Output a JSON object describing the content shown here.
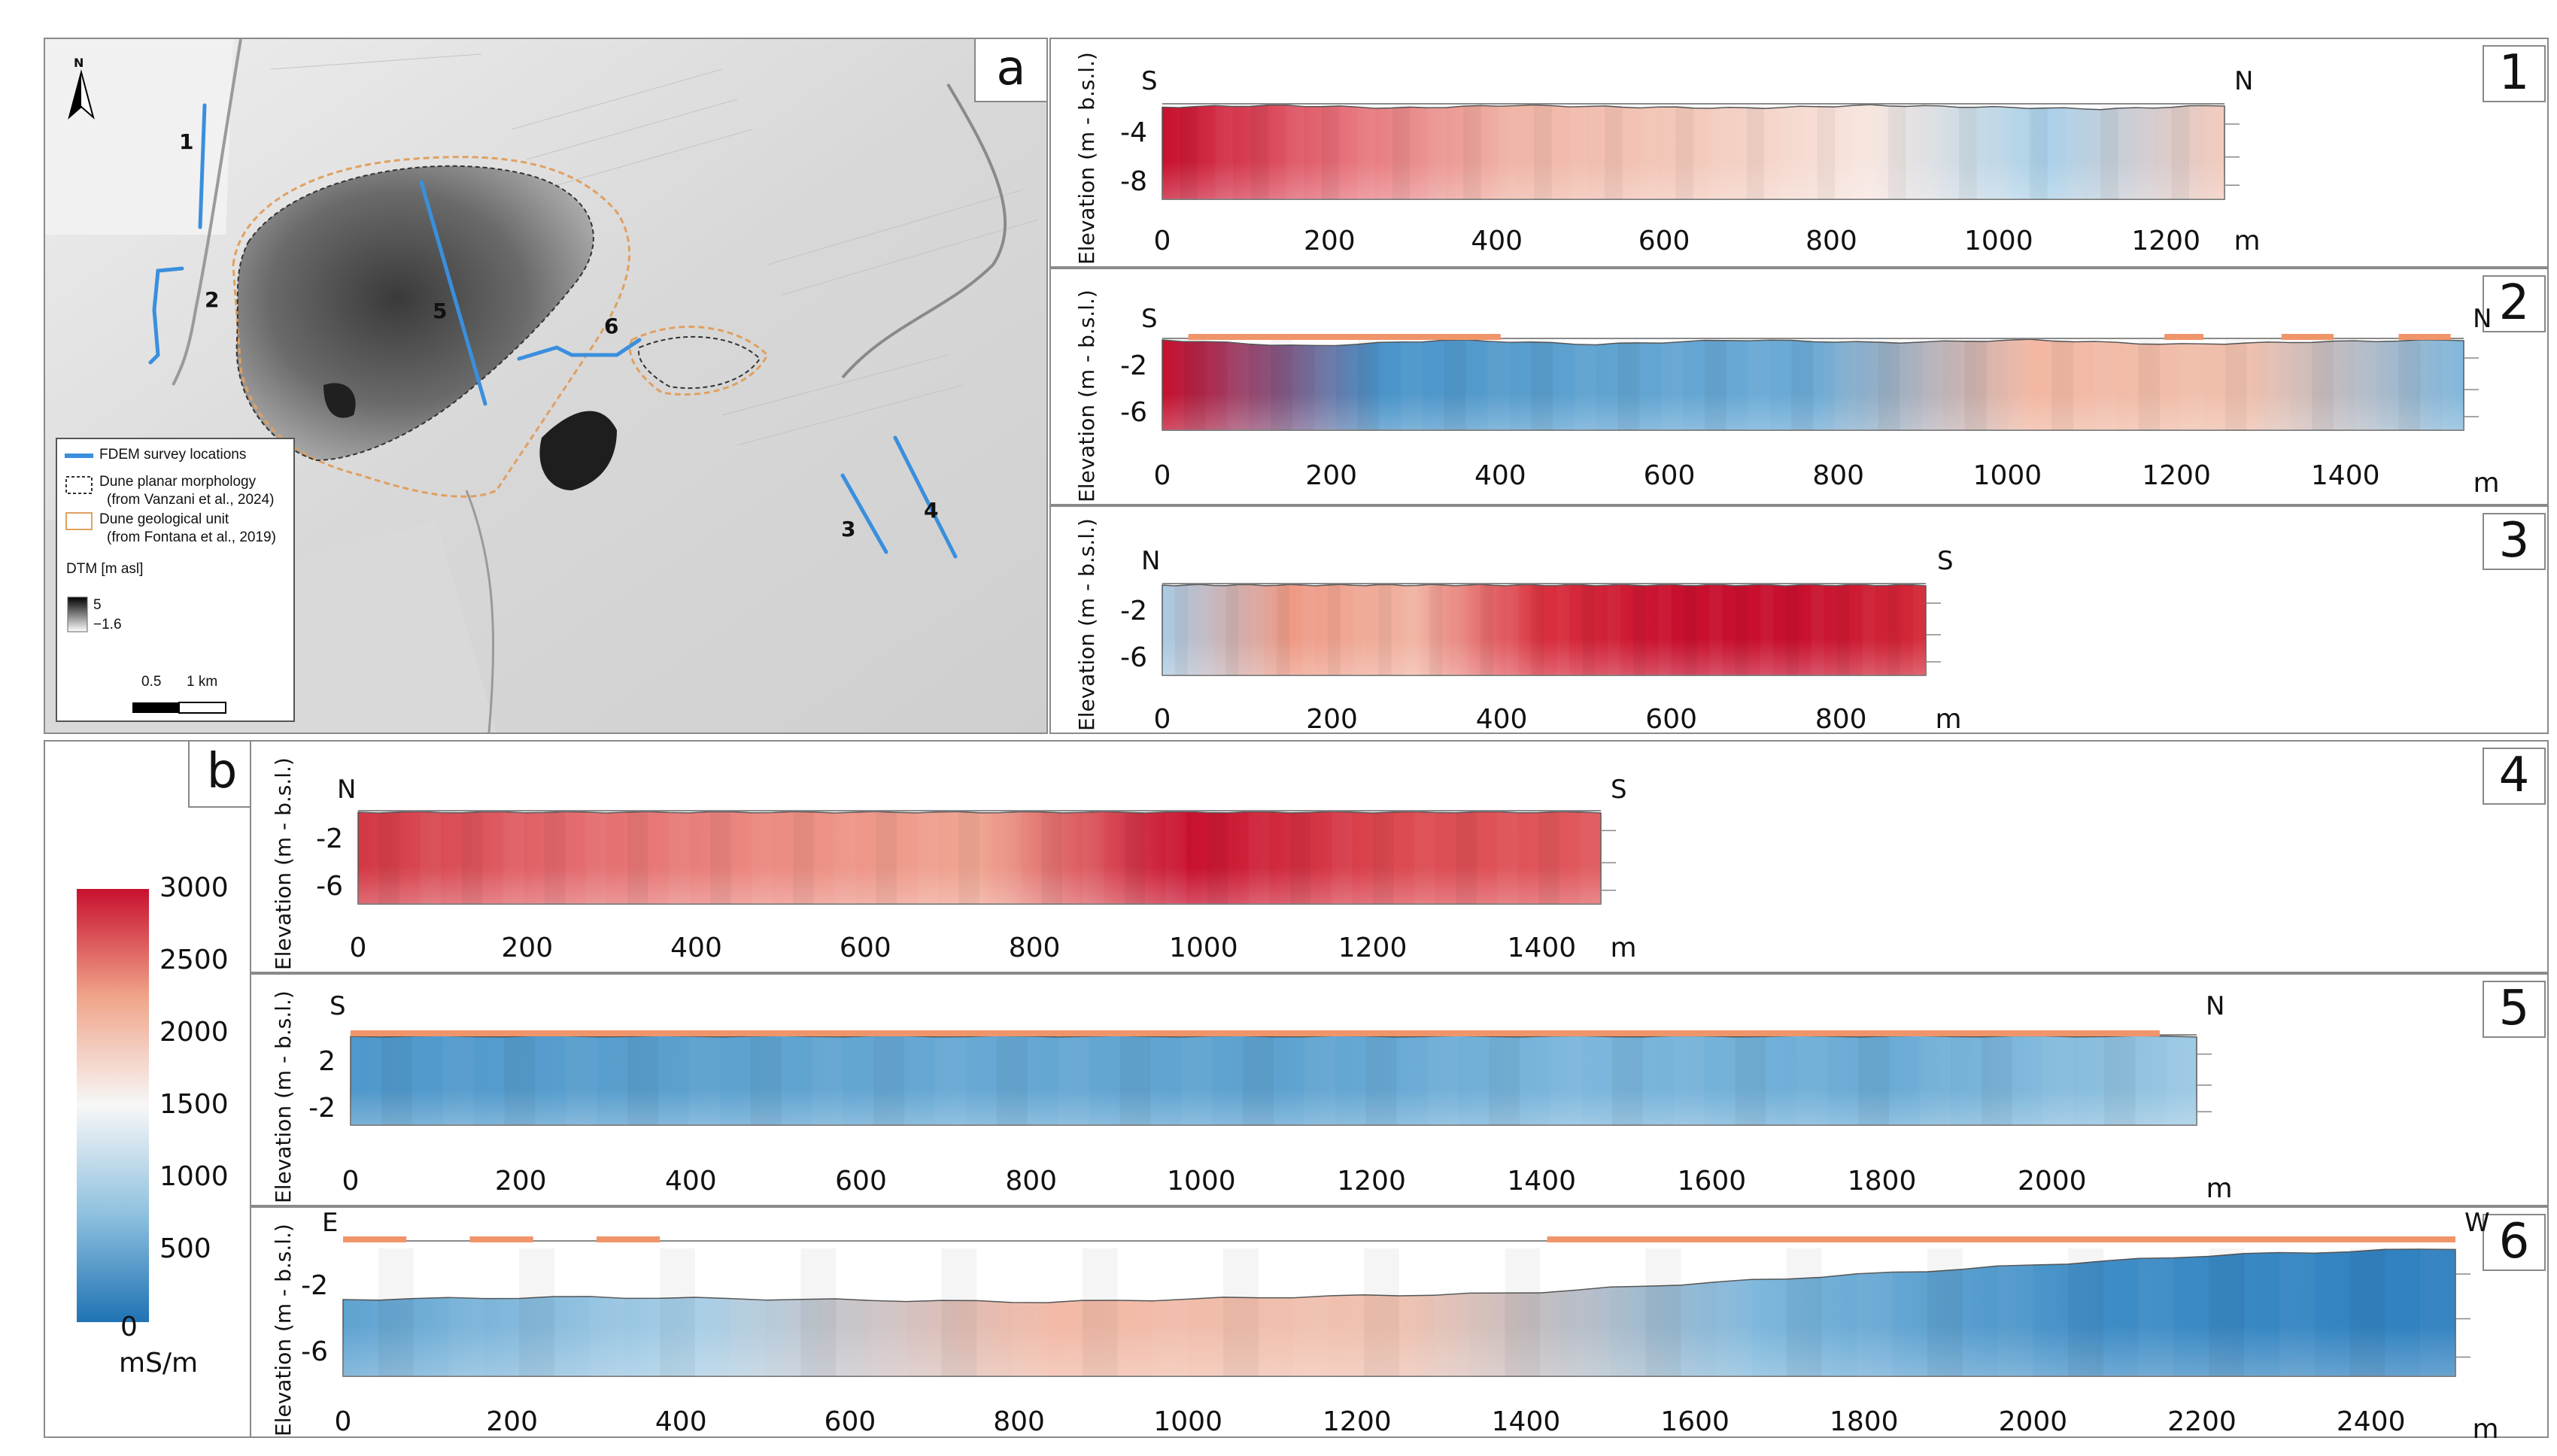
{
  "panel_a": {
    "label": "a",
    "north": "N",
    "lines": [
      {
        "id": "1",
        "label": "1"
      },
      {
        "id": "2",
        "label": "2"
      },
      {
        "id": "3",
        "label": "3"
      },
      {
        "id": "4",
        "label": "4"
      },
      {
        "id": "5",
        "label": "5"
      },
      {
        "id": "6",
        "label": "6"
      }
    ],
    "legend": {
      "survey": "FDEM survey locations",
      "planar_1": "Dune planar morphology",
      "planar_2": "(from Vanzani et al., 2024)",
      "geo_1": "Dune geological unit",
      "geo_2": "(from Fontana et al., 2019)",
      "dtm_title": "DTM [m asl]",
      "dtm_max": "5",
      "dtm_min": "−1.6",
      "scale_a": "0.5",
      "scale_b": "1 km"
    },
    "colors": {
      "survey": "#3a8fdd",
      "planar": "#333333",
      "geo": "#e0a060"
    }
  },
  "panel_b": {
    "label": "b",
    "colorbar": {
      "ticks": [
        "3000",
        "2500",
        "2000",
        "1500",
        "1000",
        "500",
        "0"
      ],
      "unit": "mS/m",
      "colors": [
        "#c8102e",
        "#f0a58a",
        "#f7f7f7",
        "#8fc1df",
        "#1f73b4"
      ]
    }
  },
  "profiles": [
    {
      "id": "1",
      "tag": "1",
      "dir_left": "S",
      "dir_right": "N",
      "ylabel": "Elevation (m - b.s.l.)",
      "yticks": [
        "-4",
        "-8"
      ],
      "xticks": [
        "0",
        "200",
        "400",
        "600",
        "800",
        "1000",
        "1200"
      ],
      "unit": "m",
      "colors": [
        "#c8102e",
        "#e6707a",
        "#f0b5a6",
        "#f3c9bb",
        "#f7e6e0",
        "#a9d1ea",
        "#f3c9bb"
      ]
    },
    {
      "id": "2",
      "tag": "2",
      "dir_left": "S",
      "dir_right": "N",
      "ylabel": "Elevation (m - b.s.l.)",
      "yticks": [
        "-2",
        "-6"
      ],
      "xticks": [
        "0",
        "200",
        "400",
        "600",
        "800",
        "1000",
        "1200",
        "1400"
      ],
      "unit": "m",
      "colors": [
        "#c8102e",
        "#4a94c9",
        "#5fa3d1",
        "#6cabd6",
        "#f2b8a3",
        "#f0c0ad",
        "#7eb6dc"
      ]
    },
    {
      "id": "3",
      "tag": "3",
      "dir_left": "N",
      "dir_right": "S",
      "ylabel": "Elevation (m - b.s.l.)",
      "yticks": [
        "-2",
        "-6"
      ],
      "xticks": [
        "0",
        "200",
        "400",
        "600",
        "800"
      ],
      "unit": "m",
      "colors": [
        "#a9cbe4",
        "#ee9a85",
        "#f1b4a3",
        "#d9303f",
        "#c8102e",
        "#c8102e",
        "#d32a39"
      ]
    },
    {
      "id": "4",
      "tag": "4",
      "dir_left": "N",
      "dir_right": "S",
      "ylabel": "Elevation (m - b.s.l.)",
      "yticks": [
        "-2",
        "-6"
      ],
      "xticks": [
        "0",
        "200",
        "400",
        "600",
        "800",
        "1000",
        "1200",
        "1400"
      ],
      "unit": "m",
      "colors": [
        "#d33844",
        "#e36a6e",
        "#ec8b82",
        "#f0a693",
        "#c8102e",
        "#dc4a52",
        "#e05a5e"
      ]
    },
    {
      "id": "5",
      "tag": "5",
      "dir_left": "S",
      "dir_right": "N",
      "ylabel": "Elevation (m - b.s.l.)",
      "yticks": [
        "2",
        "-2"
      ],
      "xticks": [
        "0",
        "200",
        "400",
        "600",
        "800",
        "1000",
        "1200",
        "1400",
        "1600",
        "1800",
        "2000"
      ],
      "unit": "m",
      "colors": [
        "#4f98cb",
        "#5aa0cf",
        "#68a9d4",
        "#5da2d0",
        "#7db7dc",
        "#6aabd5",
        "#9bc8e3"
      ]
    },
    {
      "id": "6",
      "tag": "6",
      "dir_left": "E",
      "dir_right": "W",
      "ylabel": "Elevation (m - b.s.l.)",
      "yticks": [
        "-2",
        "-6"
      ],
      "xticks": [
        "0",
        "200",
        "400",
        "600",
        "800",
        "1000",
        "1200",
        "1400",
        "1600",
        "1800",
        "2000",
        "2200",
        "2400"
      ],
      "unit": "m",
      "colors": [
        "#5fa3d1",
        "#a8cfe7",
        "#f2b9a6",
        "#f0c2b1",
        "#7fb8dc",
        "#3f8dc6",
        "#2e80bf"
      ]
    }
  ]
}
